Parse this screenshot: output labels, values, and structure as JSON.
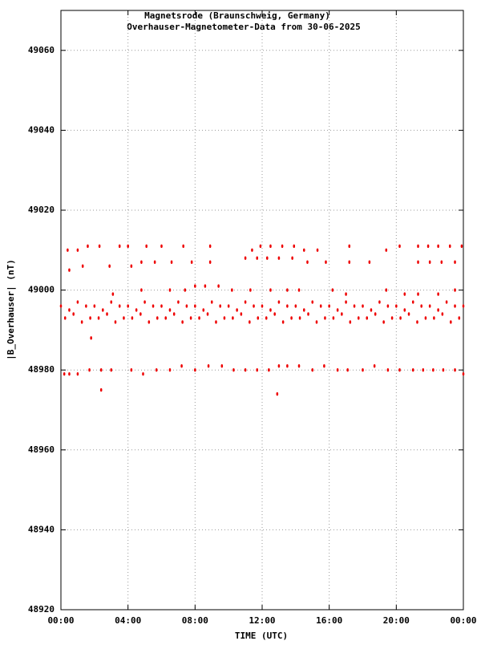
{
  "chart_data": {
    "type": "scatter",
    "title": "Magnetsrode (Braunschweig, Germany)",
    "subtitle": "Overhauser-Magnetometer-Data from 30-06-2025",
    "x_label": "TIME (UTC)",
    "y_label": "|B_Overhauser| (nT)",
    "color": "#ee0000",
    "grid": true,
    "xlim": [
      0,
      24
    ],
    "xticks": [
      {
        "value": 0,
        "label": "00:00"
      },
      {
        "value": 4,
        "label": "04:00"
      },
      {
        "value": 8,
        "label": "08:00"
      },
      {
        "value": 12,
        "label": "12:00"
      },
      {
        "value": 16,
        "label": "16:00"
      },
      {
        "value": 20,
        "label": "20:00"
      },
      {
        "value": 24,
        "label": "00:00"
      }
    ],
    "ylim": [
      48920,
      49070
    ],
    "yticks": [
      48920,
      48940,
      48960,
      48980,
      49000,
      49020,
      49040,
      49060
    ],
    "x": [
      0,
      0.5,
      1,
      1.5,
      2,
      2.5,
      3,
      3.5,
      4,
      4.5,
      5,
      5.5,
      6,
      6.5,
      7,
      7.5,
      8,
      8.5,
      9,
      9.5,
      10,
      10.5,
      11,
      11.5,
      12,
      12.5,
      13,
      13.5,
      14,
      14.5,
      15,
      15.5,
      16,
      16.5,
      17,
      17.5,
      18,
      18.5,
      19,
      19.5,
      20,
      20.5,
      21,
      21.5,
      22,
      22.5,
      23,
      23.5,
      24,
      0.25,
      0.75,
      1.25,
      1.75,
      2.25,
      2.75,
      3.25,
      3.75,
      4.25,
      4.75,
      5.25,
      5.75,
      6.25,
      6.75,
      7.25,
      7.75,
      8.25,
      8.75,
      9.25,
      9.75,
      10.25,
      10.75,
      11.25,
      11.75,
      12.25,
      12.75,
      13.25,
      13.75,
      14.25,
      14.75,
      15.25,
      15.75,
      16.25,
      16.75,
      17.25,
      17.75,
      18.25,
      18.75,
      19.25,
      19.75,
      20.25,
      20.75,
      21.25,
      21.75,
      22.25,
      22.75,
      23.25,
      23.75,
      0.4,
      1.0,
      1.6,
      2.3,
      3.5,
      4.0,
      5.1,
      6.0,
      7.3,
      8.9,
      11.4,
      11.9,
      12.5,
      13.2,
      13.9,
      14.5,
      15.3,
      17.2,
      19.4,
      20.2,
      21.3,
      21.9,
      22.5,
      23.2,
      23.9,
      0.5,
      1.3,
      2.9,
      4.2,
      4.8,
      5.6,
      6.6,
      7.8,
      8.9,
      11.0,
      11.7,
      12.3,
      13.0,
      13.8,
      14.7,
      15.8,
      17.2,
      18.4,
      21.3,
      22.0,
      22.7,
      23.5,
      3.1,
      4.8,
      6.5,
      7.4,
      8.0,
      8.6,
      9.4,
      10.2,
      11.3,
      12.5,
      13.5,
      14.2,
      16.2,
      17.0,
      19.4,
      20.5,
      21.3,
      22.5,
      23.5,
      0.2,
      0.5,
      1.0,
      1.7,
      2.4,
      3.0,
      4.2,
      4.9,
      5.7,
      6.5,
      7.2,
      8.0,
      8.8,
      9.6,
      10.3,
      11.0,
      11.7,
      12.4,
      13.0,
      13.5,
      14.2,
      15.0,
      15.7,
      16.5,
      17.1,
      18.0,
      18.7,
      19.5,
      20.2,
      21.0,
      21.6,
      22.2,
      22.8,
      23.5,
      24.0,
      2.4,
      12.9,
      1.8
    ],
    "values": [
      48996,
      48995,
      48997,
      48996,
      48996,
      48995,
      48997,
      48996,
      48996,
      48995,
      48997,
      48996,
      48996,
      48995,
      48997,
      48996,
      48996,
      48995,
      48997,
      48996,
      48996,
      48995,
      48997,
      48996,
      48996,
      48995,
      48997,
      48996,
      48996,
      48995,
      48997,
      48996,
      48996,
      48995,
      48997,
      48996,
      48996,
      48995,
      48997,
      48996,
      48996,
      48995,
      48997,
      48996,
      48996,
      48995,
      48997,
      48996,
      48996,
      48993,
      48994,
      48992,
      48993,
      48993,
      48994,
      48992,
      48993,
      48993,
      48994,
      48992,
      48993,
      48993,
      48994,
      48992,
      48993,
      48993,
      48994,
      48992,
      48993,
      48993,
      48994,
      48992,
      48993,
      48993,
      48994,
      48992,
      48993,
      48993,
      48994,
      48992,
      48993,
      48993,
      48994,
      48992,
      48993,
      48993,
      48994,
      48992,
      48993,
      48993,
      48994,
      48992,
      48993,
      48993,
      48994,
      48992,
      48993,
      49010,
      49010,
      49011,
      49011,
      49011,
      49011,
      49011,
      49011,
      49011,
      49011,
      49010,
      49011,
      49011,
      49011,
      49011,
      49010,
      49010,
      49011,
      49010,
      49011,
      49011,
      49011,
      49011,
      49011,
      49011,
      49005,
      49006,
      49006,
      49006,
      49007,
      49007,
      49007,
      49007,
      49007,
      49008,
      49008,
      49008,
      49008,
      49008,
      49007,
      49007,
      49007,
      49007,
      49007,
      49007,
      49007,
      49007,
      48999,
      49000,
      49000,
      49000,
      49001,
      49001,
      49001,
      49000,
      49000,
      49000,
      49000,
      49000,
      49000,
      48999,
      49000,
      48999,
      48999,
      48999,
      49000,
      48979,
      48979,
      48979,
      48980,
      48980,
      48980,
      48980,
      48979,
      48980,
      48980,
      48981,
      48980,
      48981,
      48981,
      48980,
      48980,
      48980,
      48980,
      48981,
      48981,
      48981,
      48980,
      48981,
      48980,
      48980,
      48980,
      48981,
      48980,
      48980,
      48980,
      48980,
      48980,
      48980,
      48980,
      48979,
      48975,
      48974,
      48988
    ]
  }
}
